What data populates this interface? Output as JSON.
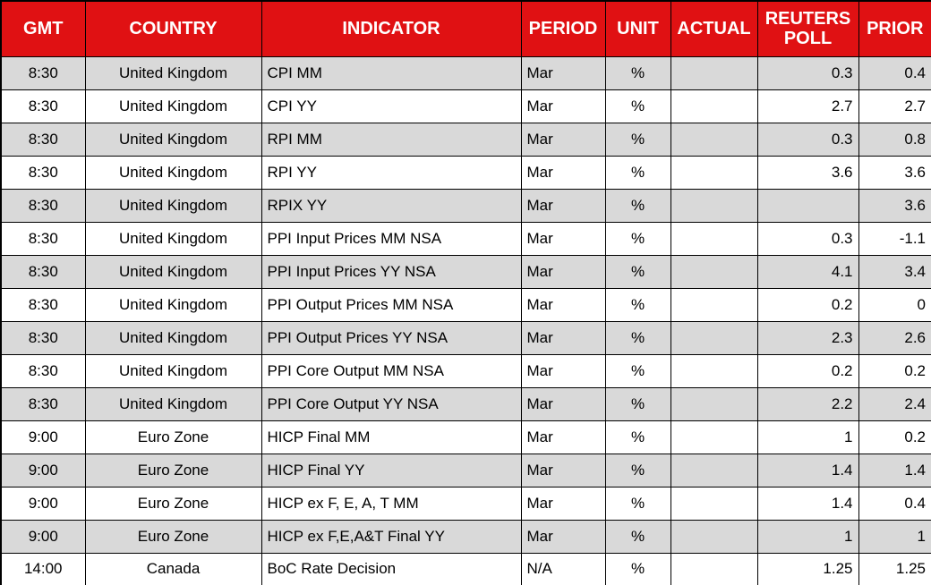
{
  "chart_data": {
    "type": "table",
    "title": "Economic calendar table",
    "columns": [
      {
        "key": "gmt",
        "label": "GMT"
      },
      {
        "key": "country",
        "label": "COUNTRY"
      },
      {
        "key": "indicator",
        "label": "INDICATOR"
      },
      {
        "key": "period",
        "label": "PERIOD"
      },
      {
        "key": "unit",
        "label": "UNIT"
      },
      {
        "key": "actual",
        "label": "ACTUAL"
      },
      {
        "key": "reuters-poll",
        "label": "REUTERS POLL"
      },
      {
        "key": "prior",
        "label": "PRIOR"
      }
    ],
    "rows": [
      [
        "8:30",
        "United Kingdom",
        "CPI MM",
        "Mar",
        "%",
        "",
        "0.3",
        "0.4"
      ],
      [
        "8:30",
        "United Kingdom",
        "CPI YY",
        "Mar",
        "%",
        "",
        "2.7",
        "2.7"
      ],
      [
        "8:30",
        "United Kingdom",
        "RPI MM",
        "Mar",
        "%",
        "",
        "0.3",
        "0.8"
      ],
      [
        "8:30",
        "United Kingdom",
        "RPI YY",
        "Mar",
        "%",
        "",
        "3.6",
        "3.6"
      ],
      [
        "8:30",
        "United Kingdom",
        "RPIX YY",
        "Mar",
        "%",
        "",
        "",
        "3.6"
      ],
      [
        "8:30",
        "United Kingdom",
        "PPI Input Prices MM NSA",
        "Mar",
        "%",
        "",
        "0.3",
        "-1.1"
      ],
      [
        "8:30",
        "United Kingdom",
        "PPI Input Prices YY NSA",
        "Mar",
        "%",
        "",
        "4.1",
        "3.4"
      ],
      [
        "8:30",
        "United Kingdom",
        "PPI Output Prices MM NSA",
        "Mar",
        "%",
        "",
        "0.2",
        "0"
      ],
      [
        "8:30",
        "United Kingdom",
        "PPI Output Prices YY NSA",
        "Mar",
        "%",
        "",
        "2.3",
        "2.6"
      ],
      [
        "8:30",
        "United Kingdom",
        "PPI Core Output MM NSA",
        "Mar",
        "%",
        "",
        "0.2",
        "0.2"
      ],
      [
        "8:30",
        "United Kingdom",
        "PPI Core Output YY NSA",
        "Mar",
        "%",
        "",
        "2.2",
        "2.4"
      ],
      [
        "9:00",
        "Euro Zone",
        "HICP Final MM",
        "Mar",
        "%",
        "",
        "1",
        "0.2"
      ],
      [
        "9:00",
        "Euro Zone",
        "HICP Final YY",
        "Mar",
        "%",
        "",
        "1.4",
        "1.4"
      ],
      [
        "9:00",
        "Euro Zone",
        "HICP ex F, E, A, T MM",
        "Mar",
        "%",
        "",
        "1.4",
        "0.4"
      ],
      [
        "9:00",
        "Euro Zone",
        "HICP ex F,E,A&T Final YY",
        "Mar",
        "%",
        "",
        "1",
        "1"
      ],
      [
        "14:00",
        "Canada",
        "BoC Rate Decision",
        "N/A",
        "%",
        "",
        "1.25",
        "1.25"
      ]
    ],
    "layout_hints": {
      "alternating_rows": true,
      "first_data_row_shaded": true,
      "header_rows": 1
    }
  },
  "colors": {
    "header_bg": "#E01113",
    "header_text": "#FFFFFF",
    "row_alt_bg": "#D9D9D9",
    "row_bg": "#FFFFFF",
    "border": "#000000",
    "text": "#000000"
  }
}
